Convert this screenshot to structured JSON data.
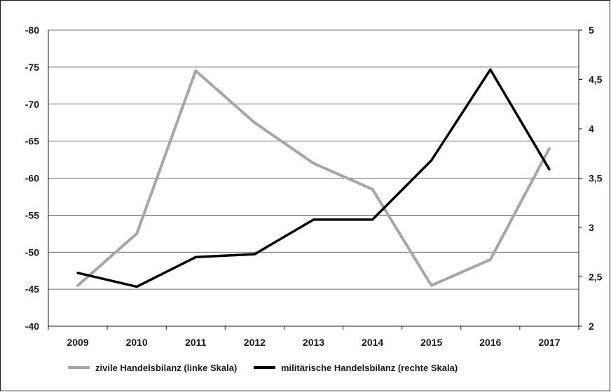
{
  "chart_data": {
    "type": "line",
    "title": "",
    "xlabel": "",
    "ylabel": "",
    "categories": [
      "2009",
      "2010",
      "2011",
      "2012",
      "2013",
      "2014",
      "2015",
      "2016",
      "2017"
    ],
    "y_left": {
      "range": [
        -40,
        -80
      ],
      "inverted": true,
      "ticks": [
        "-40",
        "-45",
        "-50",
        "-55",
        "-60",
        "-65",
        "-70",
        "-75",
        "-80"
      ]
    },
    "y_right": {
      "range": [
        2,
        5
      ],
      "ticks": [
        "2",
        "2,5",
        "3",
        "3,5",
        "4",
        "4,5",
        "5"
      ]
    },
    "grid": true,
    "legend_position": "bottom-left",
    "series": [
      {
        "name": "zivile Handelsbilanz (linke Skala)",
        "axis": "left",
        "color": "#a6a6a6",
        "values": [
          -45.5,
          -52.5,
          -74.5,
          -67.5,
          -62,
          -58.5,
          -45.5,
          -49,
          -64
        ]
      },
      {
        "name": "militärische Handelsbilanz (rechte Skala)",
        "axis": "right",
        "color": "#000000",
        "values": [
          2.54,
          2.4,
          2.7,
          2.73,
          3.08,
          3.08,
          3.68,
          4.6,
          3.59
        ]
      }
    ]
  }
}
